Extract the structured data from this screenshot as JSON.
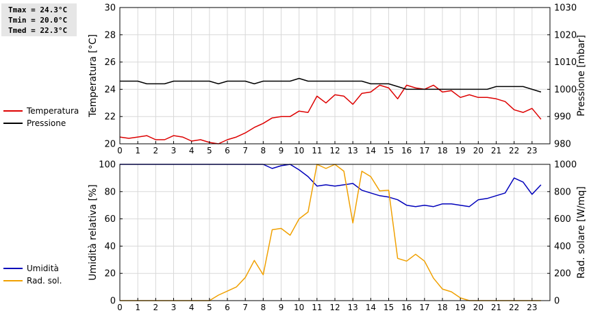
{
  "stats": {
    "tmax": "Tmax = 24.3°C",
    "tmin": "Tmin = 20.0°C",
    "tmed": "Tmed = 22.3°C"
  },
  "legend_top": [
    {
      "label": "Temperatura",
      "color": "#dd0000"
    },
    {
      "label": "Pressione",
      "color": "#000000"
    }
  ],
  "legend_bottom": [
    {
      "label": "Umidità",
      "color": "#0000bb"
    },
    {
      "label": "Rad. sol.",
      "color": "#f0a000"
    }
  ],
  "chart_data": [
    {
      "type": "line",
      "ylabel": "Temperatura [°C]",
      "y2label": "Pressione [mbar]",
      "xlim": [
        0,
        24
      ],
      "ylim": [
        20,
        30
      ],
      "y2lim": [
        980,
        1030
      ],
      "xticks": [
        0,
        1,
        2,
        3,
        4,
        5,
        6,
        7,
        8,
        9,
        10,
        11,
        12,
        13,
        14,
        15,
        16,
        17,
        18,
        19,
        20,
        21,
        22,
        23
      ],
      "yticks": [
        20,
        22,
        24,
        26,
        28,
        30
      ],
      "y2ticks": [
        980,
        990,
        1000,
        1010,
        1020,
        1030
      ],
      "grid": true,
      "series": [
        {
          "name": "Temperatura",
          "axis": "left",
          "color": "#dd0000",
          "x": [
            0,
            0.5,
            1,
            1.5,
            2,
            2.5,
            3,
            3.5,
            4,
            4.5,
            5,
            5.5,
            6,
            6.5,
            7,
            7.5,
            8,
            8.5,
            9,
            9.5,
            10,
            10.5,
            11,
            11.5,
            12,
            12.5,
            13,
            13.5,
            14,
            14.5,
            15,
            15.5,
            16,
            16.5,
            17,
            17.5,
            18,
            18.5,
            19,
            19.5,
            20,
            20.5,
            21,
            21.5,
            22,
            22.5,
            23,
            23.5
          ],
          "y": [
            20.5,
            20.4,
            20.5,
            20.6,
            20.3,
            20.3,
            20.6,
            20.5,
            20.2,
            20.3,
            20.1,
            20.0,
            20.3,
            20.5,
            20.8,
            21.2,
            21.5,
            21.9,
            22.0,
            22.0,
            22.4,
            22.3,
            23.5,
            23.0,
            23.6,
            23.5,
            22.9,
            23.7,
            23.8,
            24.3,
            24.1,
            23.3,
            24.3,
            24.1,
            24.0,
            24.3,
            23.8,
            23.9,
            23.4,
            23.6,
            23.4,
            23.4,
            23.3,
            23.1,
            22.5,
            22.3,
            22.6,
            21.8
          ]
        },
        {
          "name": "Pressione",
          "axis": "right",
          "color": "#000000",
          "x": [
            0,
            0.5,
            1,
            1.5,
            2,
            2.5,
            3,
            3.5,
            4,
            4.5,
            5,
            5.5,
            6,
            6.5,
            7,
            7.5,
            8,
            8.5,
            9,
            9.5,
            10,
            10.5,
            11,
            11.5,
            12,
            12.5,
            13,
            13.5,
            14,
            14.5,
            15,
            15.5,
            16,
            16.5,
            17,
            17.5,
            18,
            18.5,
            19,
            19.5,
            20,
            20.5,
            21,
            21.5,
            22,
            22.5,
            23,
            23.5
          ],
          "y": [
            1003,
            1003,
            1003,
            1002,
            1002,
            1002,
            1003,
            1003,
            1003,
            1003,
            1003,
            1002,
            1003,
            1003,
            1003,
            1002,
            1003,
            1003,
            1003,
            1003,
            1004,
            1003,
            1003,
            1003,
            1003,
            1003,
            1003,
            1003,
            1002,
            1002,
            1002,
            1001,
            1000,
            1000,
            1000,
            1000,
            1000,
            1000,
            1000,
            1000,
            1000,
            1000,
            1001,
            1001,
            1001,
            1001,
            1000,
            999
          ]
        }
      ]
    },
    {
      "type": "line",
      "ylabel": "Umidità relativa [%]",
      "y2label": "Rad. solare [W/mq]",
      "xlim": [
        0,
        24
      ],
      "ylim": [
        0,
        100
      ],
      "y2lim": [
        0,
        1000
      ],
      "xticks": [
        0,
        1,
        2,
        3,
        4,
        5,
        6,
        7,
        8,
        9,
        10,
        11,
        12,
        13,
        14,
        15,
        16,
        17,
        18,
        19,
        20,
        21,
        22,
        23
      ],
      "yticks": [
        0,
        20,
        40,
        60,
        80,
        100
      ],
      "y2ticks": [
        0,
        200,
        400,
        600,
        800,
        1000
      ],
      "grid": true,
      "series": [
        {
          "name": "Umidità",
          "axis": "left",
          "color": "#0000bb",
          "x": [
            0,
            0.5,
            1,
            1.5,
            2,
            2.5,
            3,
            3.5,
            4,
            4.5,
            5,
            5.5,
            6,
            6.5,
            7,
            7.5,
            8,
            8.5,
            9,
            9.5,
            10,
            10.5,
            11,
            11.5,
            12,
            12.5,
            13,
            13.5,
            14,
            14.5,
            15,
            15.5,
            16,
            16.5,
            17,
            17.5,
            18,
            18.5,
            19,
            19.5,
            20,
            20.5,
            21,
            21.5,
            22,
            22.5,
            23,
            23.5
          ],
          "y": [
            100,
            100,
            100,
            100,
            100,
            100,
            100,
            100,
            100,
            100,
            100,
            100,
            100,
            100,
            100,
            100,
            100,
            97,
            99,
            100,
            96,
            91,
            84,
            85,
            84,
            85,
            86,
            81,
            79,
            77,
            76,
            74,
            70,
            69,
            70,
            69,
            71,
            71,
            70,
            69,
            74,
            75,
            77,
            79,
            90,
            87,
            78,
            85
          ]
        },
        {
          "name": "Rad. sol.",
          "axis": "right",
          "color": "#f0a000",
          "x": [
            0,
            0.5,
            1,
            1.5,
            2,
            2.5,
            3,
            3.5,
            4,
            4.5,
            5,
            5.5,
            6,
            6.5,
            7,
            7.5,
            8,
            8.5,
            9,
            9.5,
            10,
            10.5,
            11,
            11.5,
            12,
            12.5,
            13,
            13.5,
            14,
            14.5,
            15,
            15.5,
            16,
            16.5,
            17,
            17.5,
            18,
            18.5,
            19,
            19.5,
            20,
            20.5,
            21,
            21.5,
            22,
            22.5,
            23,
            23.5
          ],
          "y": [
            0,
            0,
            0,
            0,
            0,
            0,
            0,
            0,
            0,
            0,
            0,
            40,
            70,
            100,
            170,
            295,
            190,
            520,
            530,
            480,
            600,
            650,
            1000,
            970,
            1000,
            950,
            570,
            950,
            910,
            805,
            810,
            310,
            290,
            340,
            290,
            165,
            85,
            65,
            20,
            0,
            0,
            0,
            0,
            0,
            0,
            0,
            0,
            0
          ]
        }
      ]
    }
  ]
}
